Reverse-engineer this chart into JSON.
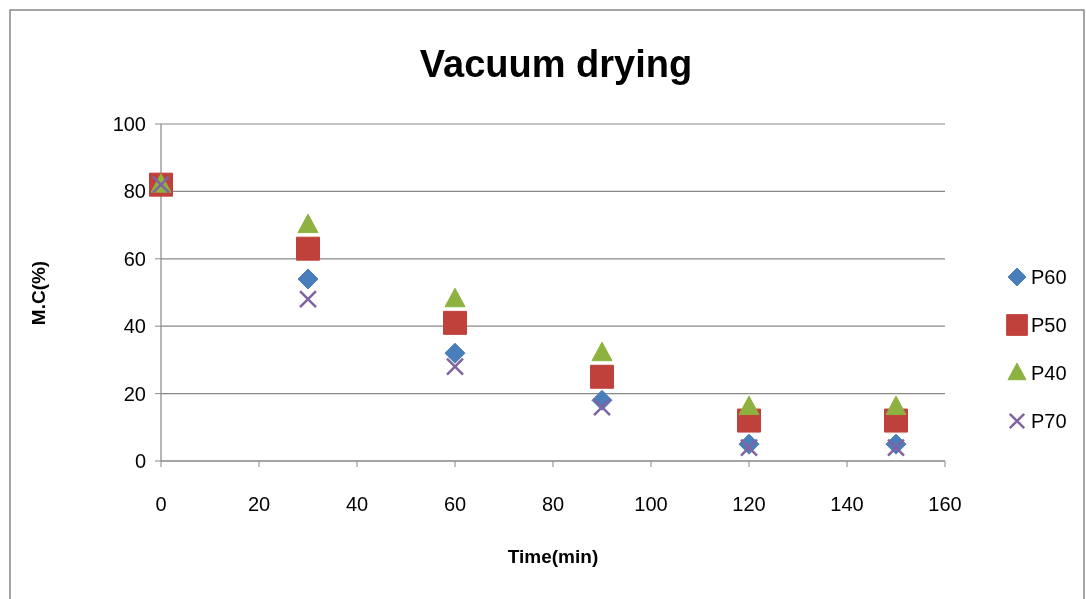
{
  "chart_data": {
    "type": "scatter",
    "title": "Vacuum drying",
    "xlabel": "Time(min)",
    "ylabel": "M.C(%)",
    "x": [
      0,
      30,
      60,
      90,
      120,
      150
    ],
    "series": [
      {
        "name": "P60",
        "color": "#4a7ebb",
        "marker": "diamond",
        "values": [
          null,
          54,
          32,
          18,
          5,
          5
        ]
      },
      {
        "name": "P50",
        "color": "#c0403c",
        "marker": "square",
        "values": [
          82,
          63,
          41,
          25,
          12,
          12
        ]
      },
      {
        "name": "P40",
        "color": "#8eb23f",
        "marker": "triangle",
        "values": [
          82,
          70,
          48,
          32,
          16,
          16
        ]
      },
      {
        "name": "P70",
        "color": "#8064a2",
        "marker": "cross",
        "values": [
          82,
          48,
          28,
          16,
          4,
          4
        ]
      }
    ],
    "xlim": [
      0,
      160
    ],
    "xticks": [
      0,
      20,
      40,
      60,
      80,
      100,
      120,
      140,
      160
    ],
    "ylim": [
      0,
      100
    ],
    "yticks": [
      0,
      20,
      40,
      60,
      80,
      100
    ],
    "grid": "y",
    "legend": "right"
  }
}
